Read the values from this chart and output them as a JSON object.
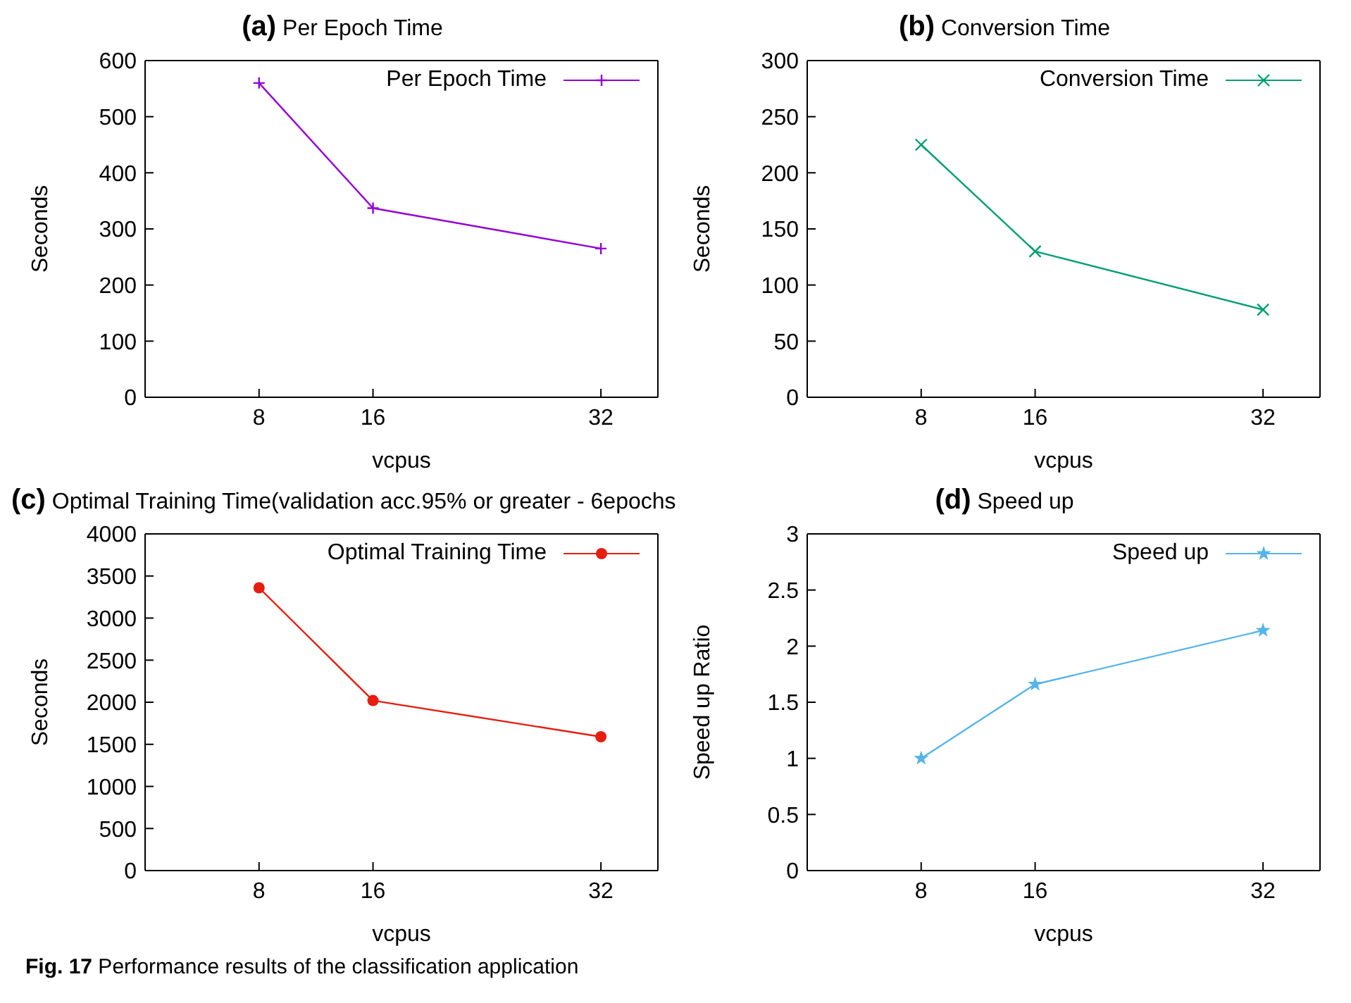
{
  "chart_data": [
    {
      "type": "line",
      "title": "(a) Per Epoch Time",
      "xlabel": "vcpus",
      "ylabel": "Seconds",
      "x": [
        8,
        16,
        32
      ],
      "xlim": [
        0,
        36
      ],
      "xticks": [
        8,
        16,
        32
      ],
      "ylim": [
        0,
        600
      ],
      "yticks": [
        0,
        100,
        200,
        300,
        400,
        500,
        600
      ],
      "legend": "top right",
      "marker": "plus",
      "grid": false,
      "series": [
        {
          "name": "Per Epoch Time",
          "color": "#9400d3",
          "values": [
            560,
            337,
            265
          ]
        }
      ]
    },
    {
      "type": "line",
      "title": "(b) Conversion Time",
      "xlabel": "vcpus",
      "ylabel": "Seconds",
      "x": [
        8,
        16,
        32
      ],
      "xlim": [
        0,
        36
      ],
      "xticks": [
        8,
        16,
        32
      ],
      "ylim": [
        0,
        300
      ],
      "yticks": [
        0,
        50,
        100,
        150,
        200,
        250,
        300
      ],
      "legend": "top right",
      "marker": "cross",
      "grid": false,
      "series": [
        {
          "name": "Conversion Time",
          "color": "#009e73",
          "values": [
            225,
            130,
            78
          ]
        }
      ]
    },
    {
      "type": "line",
      "title": "(c) Optimal Training Time(validation acc.95% or greater - 6epochs",
      "xlabel": "vcpus",
      "ylabel": "Seconds",
      "x": [
        8,
        16,
        32
      ],
      "xlim": [
        0,
        36
      ],
      "xticks": [
        8,
        16,
        32
      ],
      "ylim": [
        0,
        4000
      ],
      "yticks": [
        0,
        500,
        1000,
        1500,
        2000,
        2500,
        3000,
        3500,
        4000
      ],
      "legend": "top right",
      "marker": "circle",
      "grid": false,
      "series": [
        {
          "name": "Optimal Training Time",
          "color": "#e51e10",
          "values": [
            3360,
            2020,
            1590
          ]
        }
      ]
    },
    {
      "type": "line",
      "title": "(d) Speed up",
      "xlabel": "vcpus",
      "ylabel": "Speed up Ratio",
      "x": [
        8,
        16,
        32
      ],
      "xlim": [
        0,
        36
      ],
      "xticks": [
        8,
        16,
        32
      ],
      "ylim": [
        0,
        3
      ],
      "yticks": [
        0,
        0.5,
        1,
        1.5,
        2,
        2.5,
        3
      ],
      "legend": "top right",
      "marker": "star",
      "grid": false,
      "series": [
        {
          "name": "Speed up",
          "color": "#56b4e9",
          "values": [
            1,
            1.66,
            2.14
          ]
        }
      ],
      "annotations": [
        "Fig. 17 Performance results of the classification application"
      ]
    }
  ]
}
